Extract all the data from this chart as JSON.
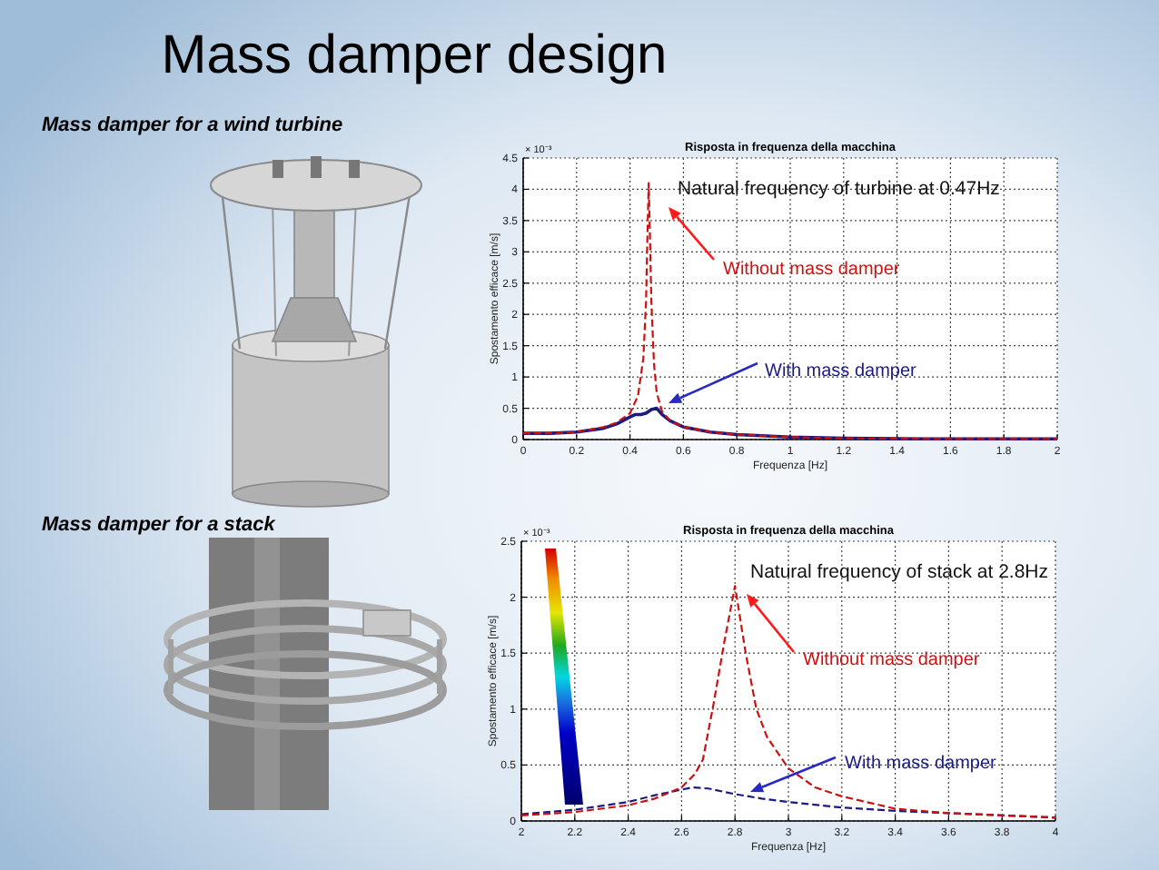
{
  "chart_data": [
    {
      "type": "other",
      "title": "Mass damper design",
      "annotations": [
        "Mass damper for a wind turbine",
        "Mass damper for a stack"
      ]
    },
    {
      "type": "line",
      "title": "Risposta in frequenza della macchina",
      "xlabel": "Frequenza [Hz]",
      "ylabel": "Spostamento efficace [m/s]",
      "annotations": [
        "× 10⁻³",
        "Natural frequency of turbine at 0.47Hz"
      ],
      "xlim": [
        0,
        2
      ],
      "xticks": [
        0,
        0.2,
        0.4,
        0.6,
        0.8,
        1,
        1.2,
        1.4,
        1.6,
        1.8,
        2
      ],
      "ylim": [
        0,
        4.5
      ],
      "yticks": [
        0,
        0.5,
        1,
        1.5,
        2,
        2.5,
        3,
        3.5,
        4,
        4.5
      ],
      "grid": true,
      "line_style": "dashed",
      "series": [
        {
          "name": "Without mass damper",
          "color": "#cc1111",
          "x": [
            0,
            0.1,
            0.2,
            0.3,
            0.35,
            0.4,
            0.43,
            0.45,
            0.46,
            0.465,
            0.47,
            0.475,
            0.48,
            0.49,
            0.5,
            0.52,
            0.55,
            0.6,
            0.7,
            0.8,
            1,
            1.2,
            1.5,
            2
          ],
          "values": [
            0.1,
            0.1,
            0.12,
            0.2,
            0.27,
            0.42,
            0.7,
            1.3,
            2.2,
            3.2,
            4.1,
            3.2,
            2.2,
            1.2,
            0.75,
            0.45,
            0.3,
            0.2,
            0.12,
            0.08,
            0.04,
            0.02,
            0.01,
            0.01
          ]
        },
        {
          "name": "With mass damper",
          "color": "#1a1a80",
          "line_style": "solid",
          "x": [
            0,
            0.1,
            0.2,
            0.3,
            0.35,
            0.4,
            0.42,
            0.44,
            0.46,
            0.48,
            0.5,
            0.52,
            0.55,
            0.6,
            0.7,
            0.8,
            1,
            1.2,
            1.5,
            2
          ],
          "values": [
            0.1,
            0.1,
            0.12,
            0.18,
            0.25,
            0.36,
            0.4,
            0.4,
            0.42,
            0.48,
            0.5,
            0.4,
            0.3,
            0.2,
            0.12,
            0.08,
            0.04,
            0.02,
            0.01,
            0.01
          ]
        }
      ]
    },
    {
      "type": "line",
      "title": "Risposta in frequenza della macchina",
      "xlabel": "Frequenza [Hz]",
      "ylabel": "Spostamento efficace [m/s]",
      "annotations": [
        "× 10⁻³",
        "Natural frequency of stack at 2.8Hz"
      ],
      "xlim": [
        2,
        4
      ],
      "xticks": [
        2,
        2.2,
        2.4,
        2.6,
        2.8,
        3,
        3.2,
        3.4,
        3.6,
        3.8,
        4
      ],
      "ylim": [
        0,
        2.5
      ],
      "yticks": [
        0,
        0.5,
        1,
        1.5,
        2,
        2.5
      ],
      "grid": true,
      "line_style": "dashed",
      "series": [
        {
          "name": "Without mass damper",
          "color": "#cc1111",
          "x": [
            2,
            2.2,
            2.4,
            2.5,
            2.6,
            2.65,
            2.68,
            2.72,
            2.76,
            2.8,
            2.84,
            2.88,
            2.92,
            3,
            3.1,
            3.2,
            3.4,
            3.6,
            3.8,
            4
          ],
          "values": [
            0.05,
            0.08,
            0.14,
            0.2,
            0.3,
            0.42,
            0.55,
            1.05,
            1.6,
            2.1,
            1.5,
            1,
            0.75,
            0.47,
            0.3,
            0.22,
            0.11,
            0.07,
            0.05,
            0.03
          ]
        },
        {
          "name": "With mass damper",
          "color": "#1a1a80",
          "x": [
            2,
            2.2,
            2.4,
            2.5,
            2.6,
            2.64,
            2.7,
            2.8,
            2.9,
            3,
            3.2,
            3.4,
            3.6,
            3.8,
            4
          ],
          "values": [
            0.06,
            0.1,
            0.17,
            0.23,
            0.28,
            0.3,
            0.29,
            0.24,
            0.2,
            0.17,
            0.12,
            0.09,
            0.07,
            0.05,
            0.03
          ]
        }
      ]
    }
  ]
}
